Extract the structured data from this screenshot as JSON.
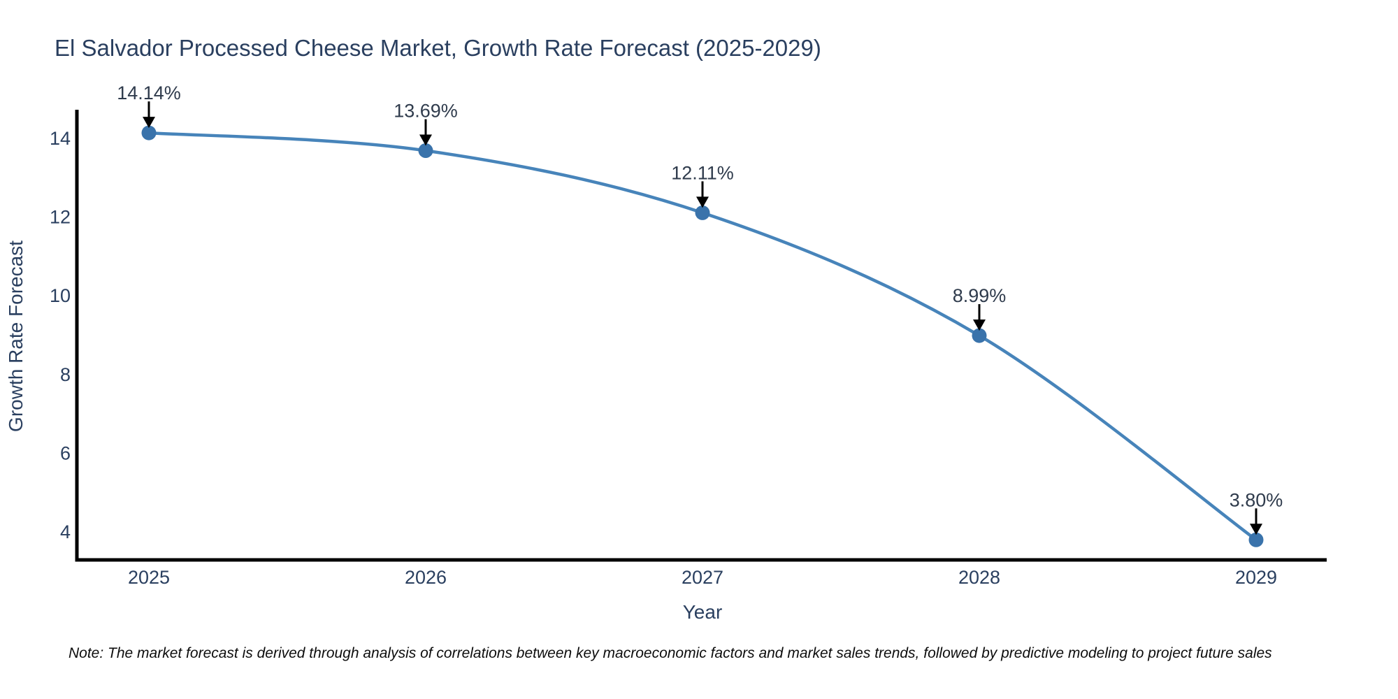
{
  "chart_data": {
    "type": "line",
    "line_shape": "spline",
    "title": "El Salvador Processed Cheese Market, Growth Rate Forecast (2025-2029)",
    "xlabel": "Year",
    "ylabel": "Growth Rate Forecast",
    "categories": [
      "2025",
      "2026",
      "2027",
      "2028",
      "2029"
    ],
    "values": [
      14.14,
      13.69,
      12.11,
      8.99,
      3.8
    ],
    "point_labels": [
      "14.14%",
      "13.69%",
      "12.11%",
      "8.99%",
      "3.80%"
    ],
    "yticks": [
      4,
      6,
      8,
      10,
      12,
      14
    ],
    "ylim": [
      3.25,
      14.7
    ],
    "grid": false,
    "legend": "none",
    "note": "Note: The market forecast is derived through analysis of correlations between key macroeconomic factors and market sales trends, followed by predictive modeling to project future sales",
    "colors": {
      "line": "#4784ba",
      "marker": "#3a73ab",
      "axis": "#000000",
      "text": "#2a3f5f",
      "annotation_text": "#2f3b4c",
      "annotation_arrow": "#000000",
      "note_text": "#0d0d0d",
      "background": "#ffffff"
    }
  }
}
